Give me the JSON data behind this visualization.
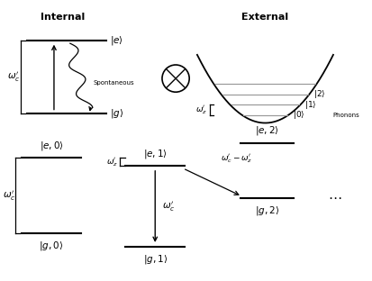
{
  "bg_color": "#ffffff",
  "line_color": "#000000",
  "gray_color": "#999999",
  "top_left_title": "Internal",
  "top_right_title": "External",
  "font_size_title": 8,
  "font_size_label": 7.5,
  "font_size_small": 6.5,
  "font_size_greek": 7.5
}
